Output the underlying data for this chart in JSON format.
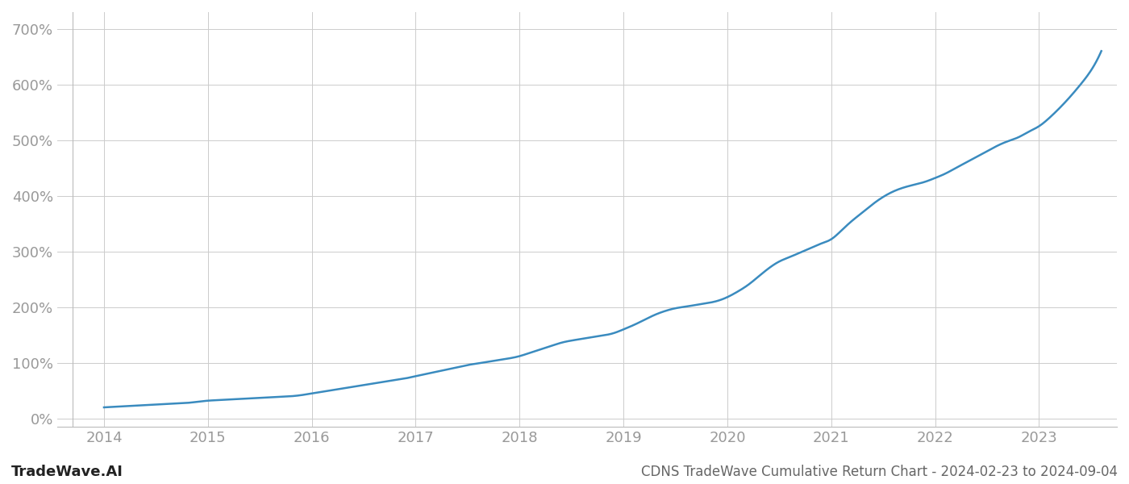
{
  "title": "CDNS TradeWave Cumulative Return Chart - 2024-02-23 to 2024-09-04",
  "watermark": "TradeWave.AI",
  "x_ticks": [
    2014,
    2015,
    2016,
    2017,
    2018,
    2019,
    2020,
    2021,
    2022,
    2023
  ],
  "y_ticks": [
    0,
    100,
    200,
    300,
    400,
    500,
    600,
    700
  ],
  "ylim": [
    -15,
    730
  ],
  "xlim": [
    2013.55,
    2023.75
  ],
  "line_color": "#3a8bbf",
  "line_width": 1.8,
  "background_color": "#ffffff",
  "grid_color": "#cccccc",
  "tick_label_color": "#999999",
  "title_color": "#666666",
  "watermark_color": "#222222",
  "font_size_ticks": 13,
  "font_size_title": 12,
  "font_size_watermark": 13,
  "curve_x": [
    2014.0,
    2014.1,
    2014.2,
    2014.3,
    2014.4,
    2014.5,
    2014.6,
    2014.7,
    2014.8,
    2014.9,
    2015.0,
    2015.1,
    2015.2,
    2015.3,
    2015.4,
    2015.5,
    2015.6,
    2015.7,
    2015.8,
    2015.9,
    2016.0,
    2016.1,
    2016.2,
    2016.3,
    2016.4,
    2016.5,
    2016.6,
    2016.7,
    2016.8,
    2016.9,
    2017.0,
    2017.1,
    2017.2,
    2017.3,
    2017.4,
    2017.5,
    2017.6,
    2017.7,
    2017.8,
    2017.9,
    2018.0,
    2018.1,
    2018.2,
    2018.3,
    2018.4,
    2018.5,
    2018.6,
    2018.7,
    2018.8,
    2018.9,
    2019.0,
    2019.1,
    2019.2,
    2019.3,
    2019.4,
    2019.5,
    2019.6,
    2019.7,
    2019.8,
    2019.9,
    2020.0,
    2020.1,
    2020.2,
    2020.3,
    2020.4,
    2020.5,
    2020.6,
    2020.7,
    2020.8,
    2020.9,
    2021.0,
    2021.1,
    2021.2,
    2021.3,
    2021.4,
    2021.5,
    2021.6,
    2021.7,
    2021.8,
    2021.9,
    2022.0,
    2022.1,
    2022.2,
    2022.3,
    2022.4,
    2022.5,
    2022.6,
    2022.7,
    2022.8,
    2022.9,
    2023.0,
    2023.1,
    2023.2,
    2023.3,
    2023.4,
    2023.5,
    2023.6
  ],
  "curve_y": [
    20,
    21,
    22,
    23,
    24,
    25,
    26,
    27,
    28,
    30,
    32,
    33,
    34,
    35,
    36,
    37,
    38,
    39,
    40,
    42,
    45,
    48,
    51,
    54,
    57,
    60,
    63,
    66,
    69,
    72,
    76,
    80,
    84,
    88,
    92,
    96,
    99,
    102,
    105,
    108,
    112,
    118,
    124,
    130,
    136,
    140,
    143,
    146,
    149,
    153,
    160,
    168,
    177,
    186,
    193,
    198,
    201,
    204,
    207,
    211,
    218,
    228,
    240,
    255,
    270,
    282,
    290,
    298,
    306,
    314,
    322,
    338,
    355,
    370,
    385,
    398,
    408,
    415,
    420,
    425,
    432,
    440,
    450,
    460,
    470,
    480,
    490,
    498,
    505,
    515,
    525,
    540,
    558,
    578,
    600,
    625,
    660
  ]
}
